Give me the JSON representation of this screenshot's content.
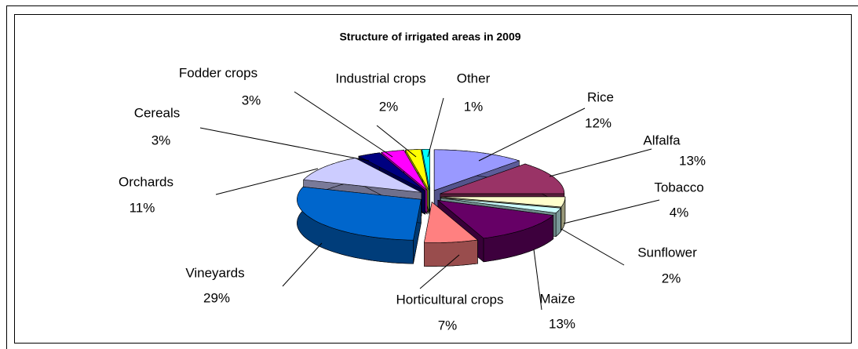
{
  "chart_data": {
    "type": "pie",
    "title": "Structure of irrigated areas in 2009",
    "categories": [
      "Rice",
      "Alfalfa",
      "Tobacco",
      "Sunflower",
      "Maize",
      "Horticultural crops",
      "Vineyards",
      "Orchards",
      "Cereals",
      "Fodder crops",
      "Industrial crops",
      "Other"
    ],
    "values": [
      12,
      13,
      4,
      2,
      13,
      7,
      29,
      11,
      3,
      3,
      2,
      1
    ],
    "value_labels": [
      "12%",
      "13%",
      "4%",
      "2%",
      "13%",
      "7%",
      "29%",
      "11%",
      "3%",
      "3%",
      "2%",
      "1%"
    ],
    "colors": [
      "#9999ff",
      "#993366",
      "#ffffcc",
      "#ccffff",
      "#660066",
      "#ff8080",
      "#0066cc",
      "#ccccff",
      "#000080",
      "#ff00ff",
      "#ffff00",
      "#00ffff"
    ]
  }
}
